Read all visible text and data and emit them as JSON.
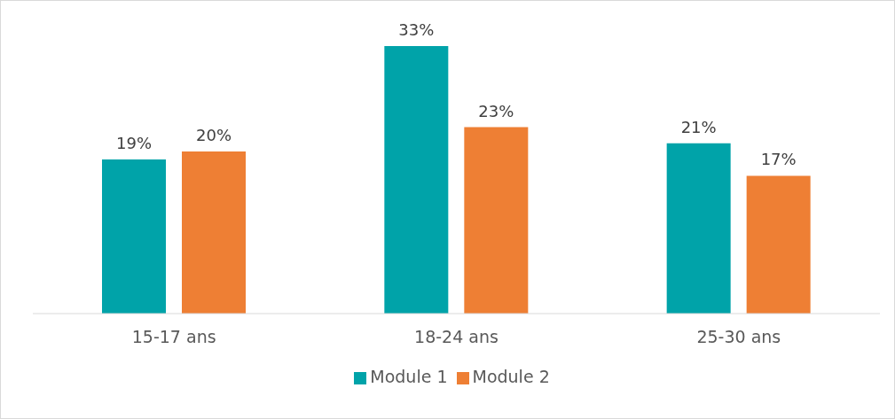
{
  "chart_data": {
    "type": "bar",
    "categories": [
      "15-17 ans",
      "18-24 ans",
      "25-30 ans"
    ],
    "tick_labels": "x",
    "series": [
      {
        "name": "Module 1",
        "color": "#00a3a9",
        "values": [
          19,
          33,
          21
        ],
        "value_labels": [
          "19%",
          "33%",
          "21%"
        ]
      },
      {
        "name": "Module 2",
        "color": "#ee7f34",
        "values": [
          20,
          23,
          17
        ],
        "value_labels": [
          "20%",
          "23%",
          "17%"
        ]
      }
    ],
    "legend": "bottom",
    "grid": false
  }
}
